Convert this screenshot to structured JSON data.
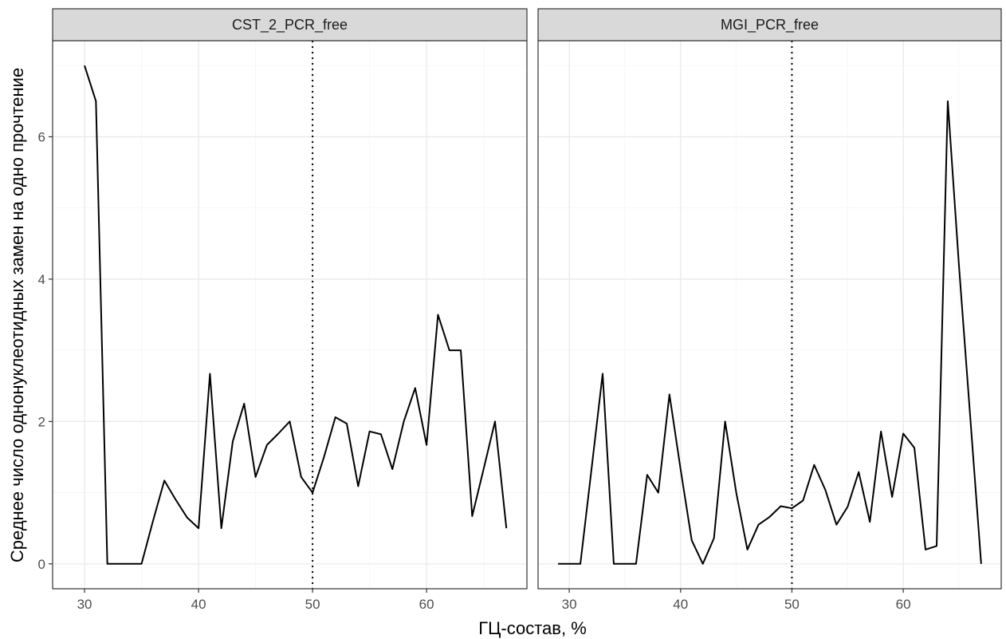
{
  "chart_data": {
    "type": "line",
    "title": "",
    "xlabel": "ГЦ-состав, %",
    "ylabel": "Среднее число однонуклеотидных замен на одно прочтение",
    "xlim": [
      27.2,
      68.8
    ],
    "ylim": [
      -0.35,
      7.35
    ],
    "x_ticks": [
      30,
      40,
      50,
      60
    ],
    "y_ticks": [
      0,
      2,
      4,
      6
    ],
    "reference_line_x": 50,
    "grid": true,
    "legend": "none",
    "line_color": "#000000",
    "panels": [
      {
        "name": "CST_2_PCR_free",
        "series": [
          {
            "x": [
              30,
              31,
              32,
              33,
              34,
              35,
              36,
              37,
              38,
              39,
              40,
              41,
              42,
              43,
              44,
              45,
              46,
              47,
              48,
              49,
              50,
              51,
              52,
              53,
              54,
              55,
              56,
              57,
              58,
              59,
              60,
              61,
              62,
              63,
              64,
              65,
              66,
              67
            ],
            "values": [
              7.0,
              6.5,
              0.0,
              0.0,
              0.0,
              0.0,
              0.6,
              1.17,
              0.9,
              0.65,
              0.5,
              2.67,
              0.5,
              1.72,
              2.25,
              1.22,
              1.67,
              1.83,
              2.0,
              1.22,
              1.0,
              1.5,
              2.06,
              1.97,
              1.09,
              1.86,
              1.82,
              1.33,
              2.0,
              2.47,
              1.67,
              3.5,
              3.0,
              3.0,
              0.67,
              1.33,
              2.0,
              0.5
            ]
          }
        ]
      },
      {
        "name": "MGI_PCR_free",
        "series": [
          {
            "x": [
              29,
              30,
              31,
              32,
              33,
              34,
              35,
              36,
              37,
              38,
              39,
              40,
              41,
              42,
              43,
              44,
              45,
              46,
              47,
              48,
              49,
              50,
              51,
              52,
              53,
              54,
              55,
              56,
              57,
              58,
              59,
              60,
              61,
              62,
              63,
              64,
              65,
              66,
              67
            ],
            "values": [
              0.0,
              0.0,
              0.0,
              1.33,
              2.67,
              0.0,
              0.0,
              0.0,
              1.25,
              1.0,
              2.38,
              1.33,
              0.33,
              0.0,
              0.36,
              2.0,
              1.0,
              0.2,
              0.55,
              0.66,
              0.81,
              0.78,
              0.89,
              1.39,
              1.04,
              0.55,
              0.8,
              1.29,
              0.59,
              1.86,
              0.94,
              1.83,
              1.63,
              0.2,
              0.25,
              6.5,
              4.2,
              2.1,
              0.0
            ]
          }
        ]
      }
    ]
  }
}
